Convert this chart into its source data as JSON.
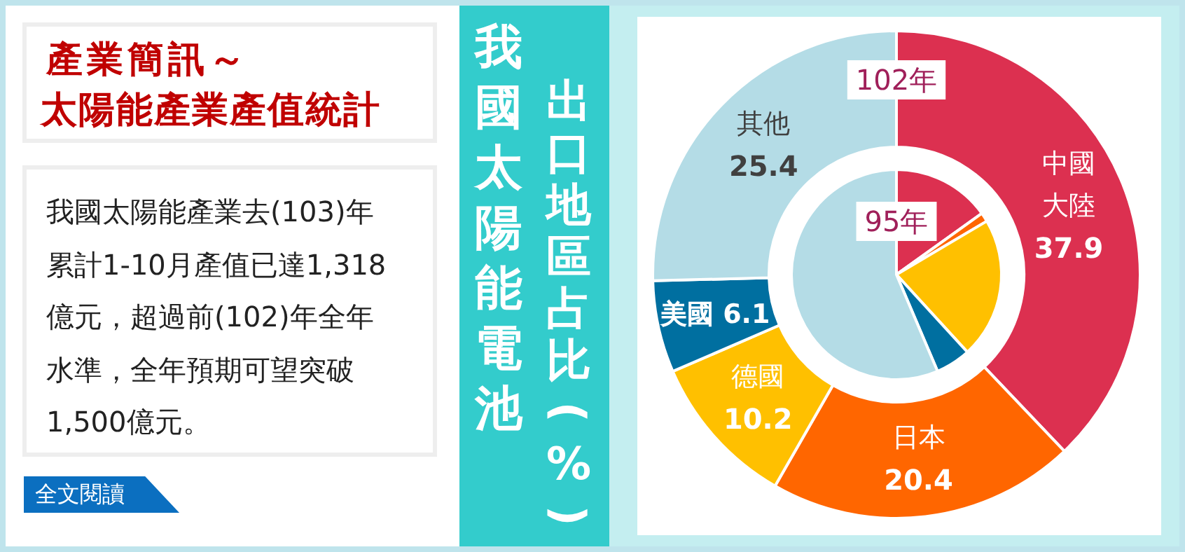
{
  "chart_data": {
    "type": "donut",
    "title": "我國太陽能電池",
    "subtitle": "出口地區占比(%)",
    "annotations": [
      "產業簡訊～",
      "太陽能產業產值統計",
      "我國太陽能產業去(103)年累計1-10月產值已達1,318億元，超過前(102)年全年水準，全年預期可望突破1,500億元。",
      "全文閱讀"
    ],
    "categories": [
      "中國大陸",
      "日本",
      "德國",
      "美國",
      "其他"
    ],
    "colors": [
      "#dc3050",
      "#ff6600",
      "#ffc000",
      "#006fa0",
      "#b4dce6"
    ],
    "series": [
      {
        "name": "102年",
        "values": [
          37.9,
          20.4,
          10.2,
          6.1,
          25.4
        ],
        "value_labels": [
          "37.9",
          "20.4",
          "10.2",
          "6.1",
          "25.4"
        ]
      },
      {
        "name": "95年",
        "type": "pie",
        "values": [
          15.1,
          1.4,
          21.7,
          5.4,
          56.4
        ]
      }
    ]
  }
}
